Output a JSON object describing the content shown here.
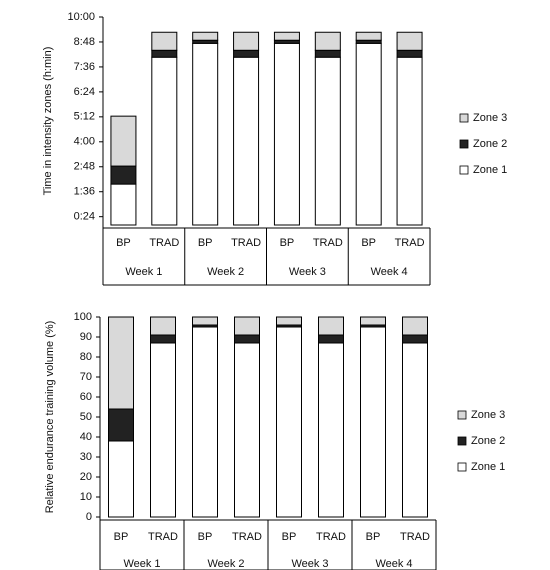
{
  "chart_data": [
    {
      "type": "stacked-bar",
      "y_label": "Time in intensity zones (h:min)",
      "categories": [
        "BP",
        "TRAD",
        "BP",
        "TRAD",
        "BP",
        "TRAD",
        "BP",
        "TRAD"
      ],
      "groups": [
        "Week 1",
        "Week 2",
        "Week 3",
        "Week 4"
      ],
      "series": [
        {
          "name": "Zone 1",
          "color": "#ffffff",
          "values": [
            118,
            484,
            524,
            484,
            524,
            484,
            524,
            484
          ]
        },
        {
          "name": "Zone 2",
          "color": "#222222",
          "values": [
            52,
            20,
            9,
            20,
            9,
            20,
            9,
            20
          ]
        },
        {
          "name": "Zone 3",
          "color": "#d9d9d9",
          "values": [
            144,
            52,
            23,
            52,
            23,
            52,
            23,
            52
          ]
        }
      ],
      "ylim": [
        0,
        600
      ],
      "yticks": [
        {
          "value": 24,
          "label": "0:24"
        },
        {
          "value": 96,
          "label": "1:36"
        },
        {
          "value": 168,
          "label": "2:48"
        },
        {
          "value": 240,
          "label": "4:00"
        },
        {
          "value": 312,
          "label": "5:12"
        },
        {
          "value": 384,
          "label": "6:24"
        },
        {
          "value": 456,
          "label": "7:36"
        },
        {
          "value": 528,
          "label": "8:48"
        },
        {
          "value": 600,
          "label": "10:00"
        }
      ],
      "grid": false,
      "legend": "right"
    },
    {
      "type": "stacked-bar",
      "y_label": "Relative endurance training volume (%)",
      "categories": [
        "BP",
        "TRAD",
        "BP",
        "TRAD",
        "BP",
        "TRAD",
        "BP",
        "TRAD"
      ],
      "groups": [
        "Week 1",
        "Week 2",
        "Week 3",
        "Week 4"
      ],
      "series": [
        {
          "name": "Zone 1",
          "color": "#ffffff",
          "values": [
            38,
            87,
            95,
            87,
            95,
            87,
            95,
            87
          ]
        },
        {
          "name": "Zone 2",
          "color": "#222222",
          "values": [
            16,
            4,
            1,
            4,
            1,
            4,
            1,
            4
          ]
        },
        {
          "name": "Zone 3",
          "color": "#d9d9d9",
          "values": [
            46,
            9,
            4,
            9,
            4,
            9,
            4,
            9
          ]
        }
      ],
      "ylim": [
        0,
        100
      ],
      "yticks": [
        0,
        10,
        20,
        30,
        40,
        50,
        60,
        70,
        80,
        90,
        100
      ],
      "grid": false,
      "legend": "right"
    }
  ]
}
